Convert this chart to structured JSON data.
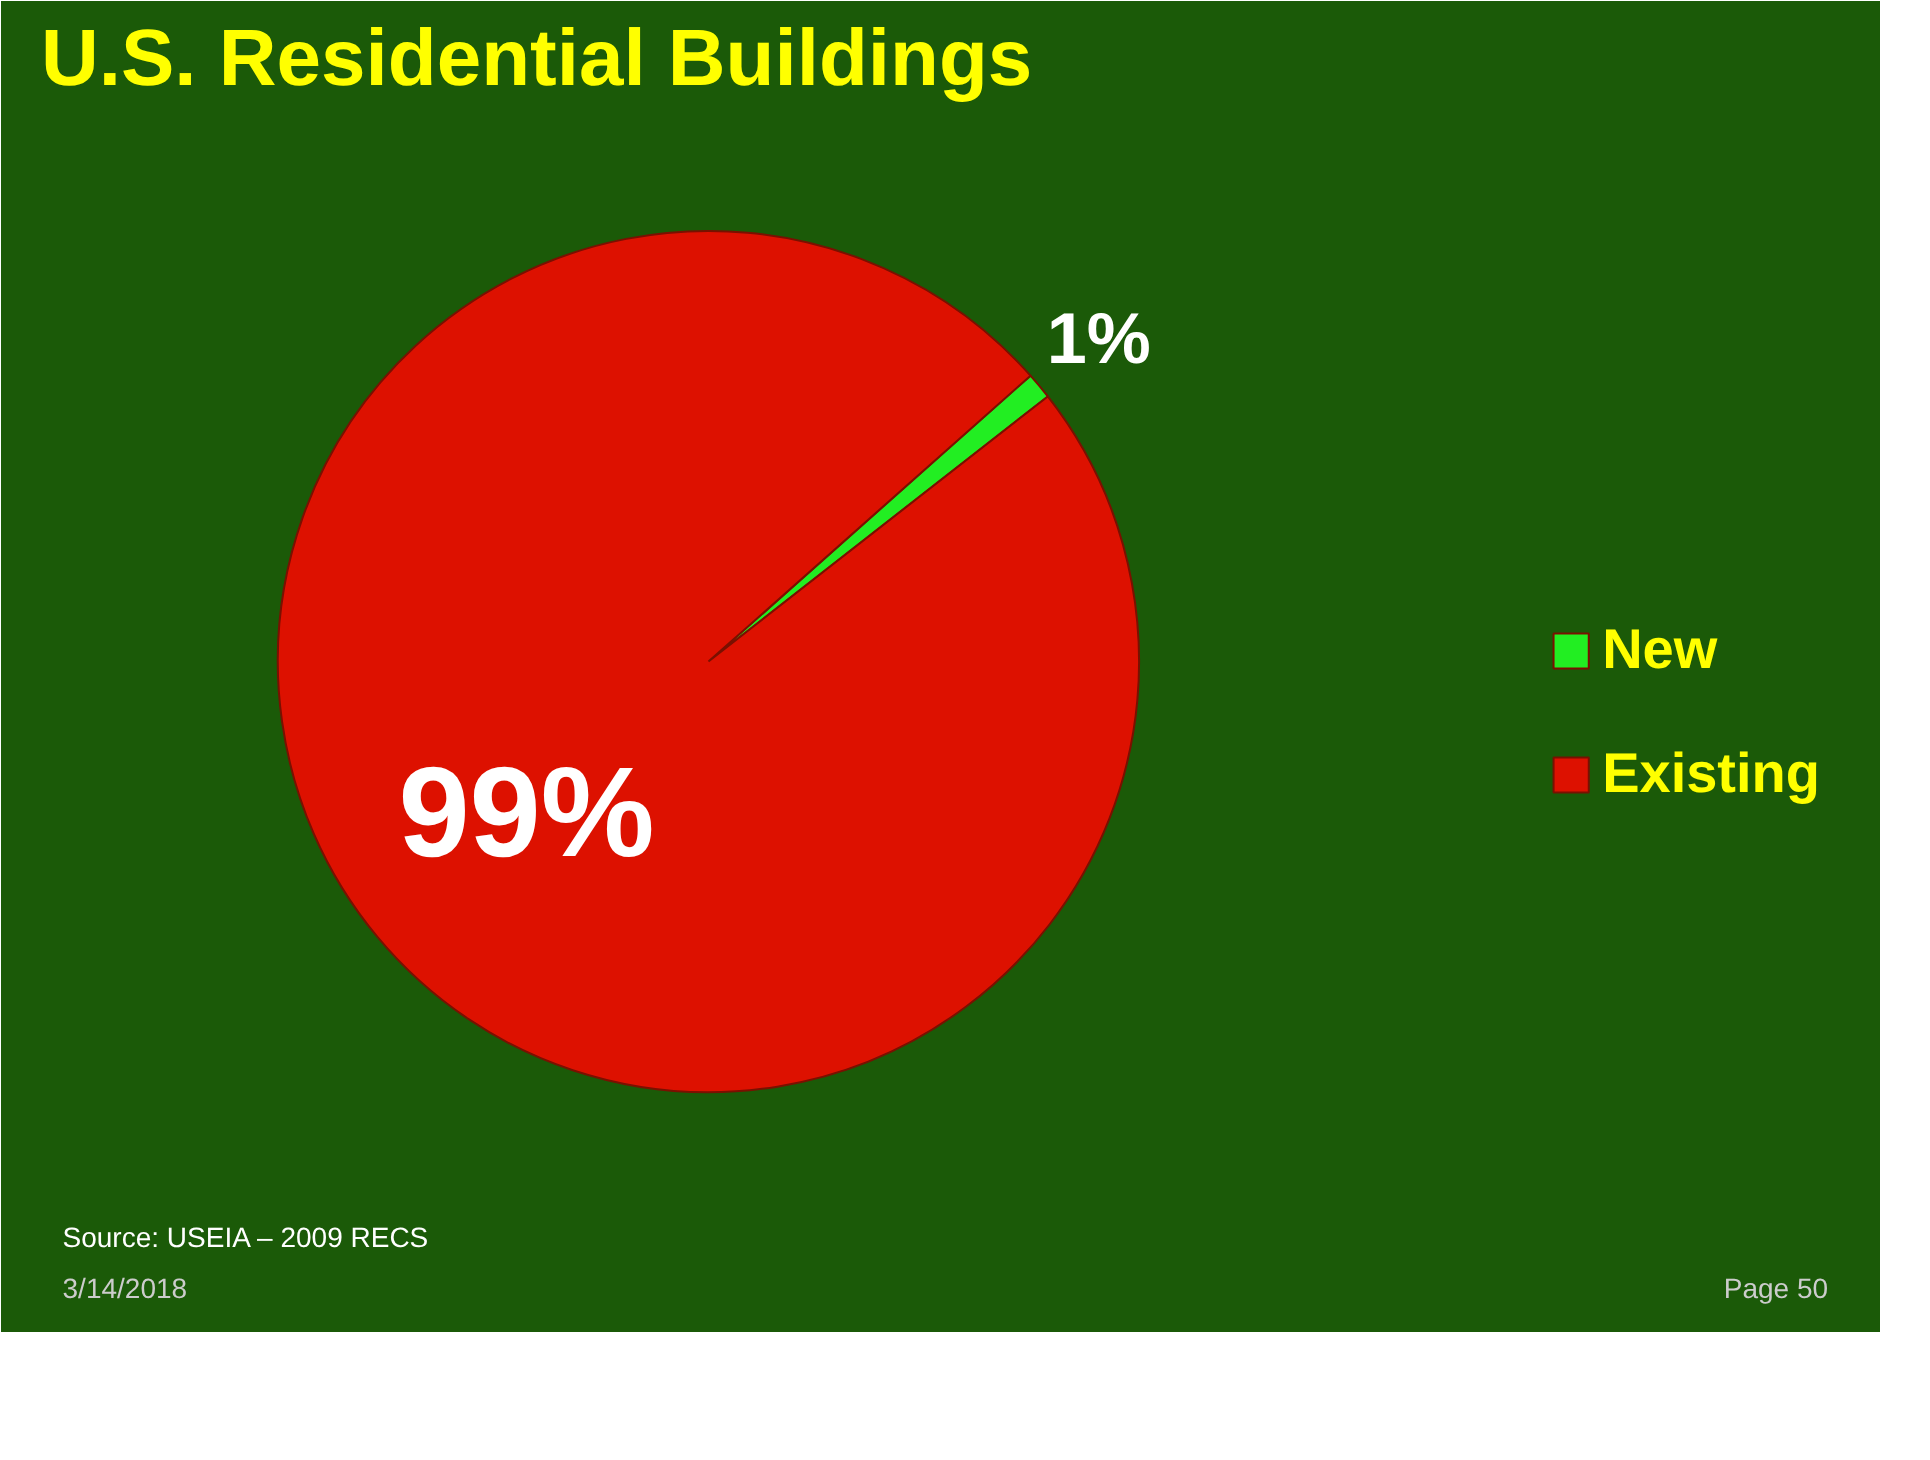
{
  "chart_data": {
    "type": "pie",
    "title": "U.S. Residential Buildings",
    "categories": [
      "New",
      "Existing"
    ],
    "values": [
      1,
      99
    ],
    "colors": [
      "#22ee22",
      "#dd1100"
    ],
    "value_labels": [
      "1%",
      "99%"
    ],
    "legend": "right",
    "annotations": [
      "Source: USEIA – 2009 RECS",
      "3/14/2018",
      "Page 50"
    ]
  }
}
